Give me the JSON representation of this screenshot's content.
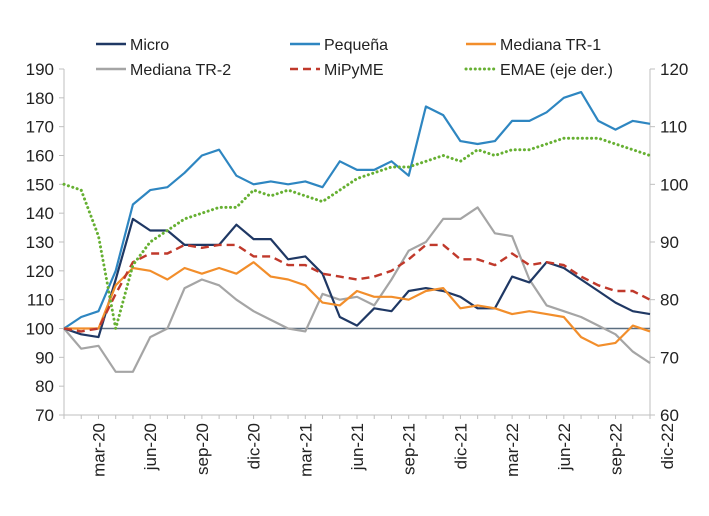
{
  "chart_data": {
    "type": "line",
    "title": "",
    "xlabel": "",
    "ylabel": "",
    "ylim": [
      70,
      190
    ],
    "ylim_right": [
      60,
      120
    ],
    "yticks": [
      70,
      80,
      90,
      100,
      110,
      120,
      130,
      140,
      150,
      160,
      170,
      180,
      190
    ],
    "yticks_right": [
      60,
      70,
      80,
      90,
      100,
      110,
      120
    ],
    "x_tick_labels": [
      "mar-20",
      "jun-20",
      "sep-20",
      "dic-20",
      "mar-21",
      "jun-21",
      "sep-21",
      "dic-21",
      "mar-22",
      "jun-22",
      "sep-22",
      "dic-22"
    ],
    "x_tick_indices": [
      2,
      5,
      8,
      11,
      14,
      17,
      20,
      23,
      26,
      29,
      32,
      35
    ],
    "baseline": 100,
    "legend": [
      "Micro",
      "Pequeña",
      "Mediana TR-1",
      "Mediana TR-2",
      "MiPyME",
      "EMAE (eje der.)"
    ],
    "series": [
      {
        "name": "Micro",
        "axis": "left",
        "color": "#1f3864",
        "style": "solid",
        "values": [
          100,
          98,
          97,
          117,
          138,
          134,
          134,
          129,
          129,
          129,
          136,
          131,
          131,
          124,
          125,
          119,
          104,
          101,
          107,
          106,
          113,
          114,
          113,
          111,
          107,
          107,
          118,
          116,
          123,
          121,
          117,
          113,
          109,
          106,
          105
        ]
      },
      {
        "name": "Pequeña",
        "axis": "left",
        "color": "#2e86c1",
        "style": "solid",
        "values": [
          100,
          104,
          106,
          120,
          143,
          148,
          149,
          154,
          160,
          162,
          153,
          150,
          151,
          150,
          151,
          149,
          158,
          155,
          155,
          158,
          153,
          177,
          174,
          165,
          164,
          165,
          172,
          172,
          175,
          180,
          182,
          172,
          169,
          172,
          171
        ]
      },
      {
        "name": "Mediana TR-1",
        "axis": "left",
        "color": "#f28e2b",
        "style": "solid",
        "values": [
          100,
          100,
          100,
          115,
          121,
          120,
          117,
          121,
          119,
          121,
          119,
          123,
          118,
          117,
          115,
          109,
          108,
          113,
          111,
          111,
          110,
          113,
          114,
          107,
          108,
          107,
          105,
          106,
          105,
          104,
          97,
          94,
          95,
          101,
          99
        ]
      },
      {
        "name": "Mediana TR-2",
        "axis": "left",
        "color": "#a5a5a5",
        "style": "solid",
        "values": [
          100,
          93,
          94,
          85,
          85,
          97,
          100,
          114,
          117,
          115,
          110,
          106,
          103,
          100,
          99,
          112,
          110,
          111,
          108,
          117,
          127,
          130,
          138,
          138,
          142,
          133,
          132,
          117,
          108,
          106,
          104,
          101,
          98,
          92,
          88
        ]
      },
      {
        "name": "MiPyME",
        "axis": "left",
        "color": "#c0392b",
        "style": "dashed",
        "values": [
          100,
          99,
          100,
          112,
          123,
          126,
          126,
          129,
          128,
          129,
          129,
          125,
          125,
          122,
          122,
          119,
          118,
          117,
          118,
          120,
          124,
          129,
          129,
          124,
          124,
          122,
          126,
          122,
          123,
          122,
          118,
          115,
          113,
          113,
          110
        ]
      },
      {
        "name": "EMAE (eje der.)",
        "axis": "right",
        "color": "#66b032",
        "style": "dotted",
        "values": [
          100,
          99,
          91,
          75,
          86,
          90,
          92,
          94,
          95,
          96,
          96,
          99,
          98,
          99,
          98,
          97,
          99,
          101,
          102,
          103,
          103,
          104,
          105,
          104,
          106,
          105,
          106,
          106,
          107,
          108,
          108,
          108,
          107,
          106,
          105
        ]
      }
    ]
  }
}
